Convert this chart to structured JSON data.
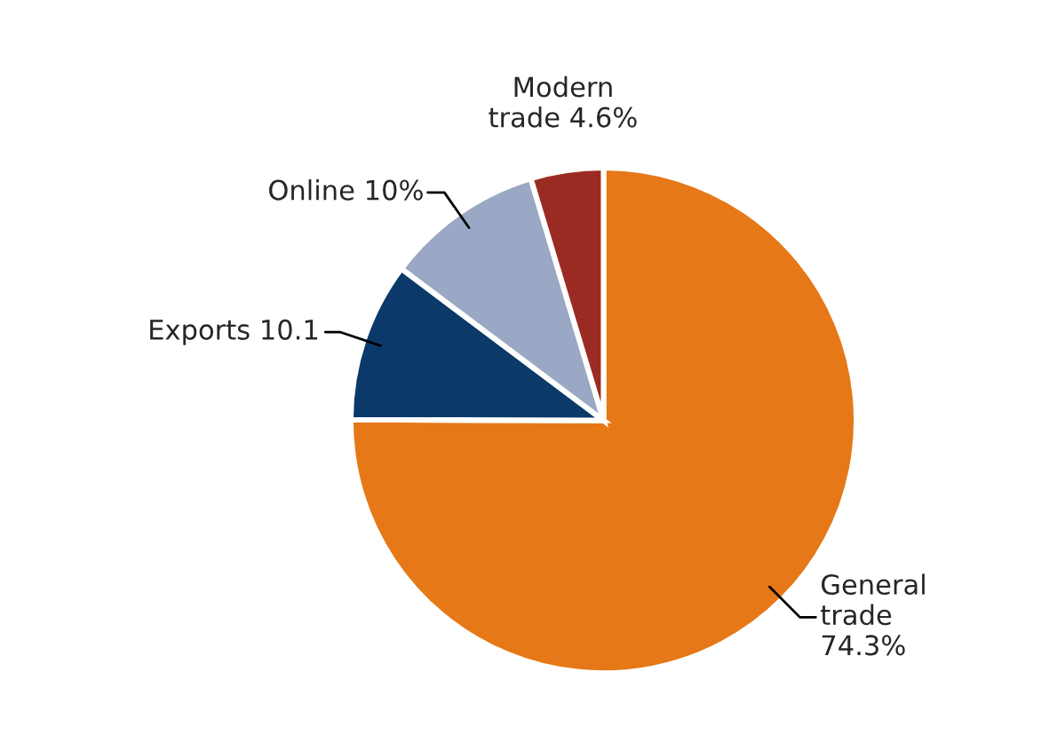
{
  "chart_data": {
    "type": "pie",
    "categories": [
      "General\ntrade",
      "Exports",
      "Online",
      "Modern\ntrade"
    ],
    "values": [
      74.3,
      10.1,
      10,
      4.6
    ],
    "value_labels": [
      "74.3%",
      "10.1",
      "10%",
      "4.6%"
    ],
    "colors": [
      "#e67817",
      "#0b3a6a",
      "#9aa7c5",
      "#9b2b22"
    ],
    "legend": false
  }
}
